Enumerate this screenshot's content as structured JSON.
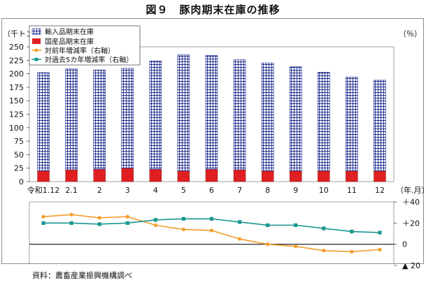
{
  "title": "図９　豚肉期末在庫の推移",
  "source": "資料：農畜産業振興機構調べ",
  "chart_data": [
    {
      "type": "bar",
      "stacked": true,
      "ylabel": "（千トン）",
      "xlabel": "（年.月）",
      "ylim": [
        0,
        250
      ],
      "yticks": [
        0,
        25,
        50,
        75,
        100,
        125,
        150,
        175,
        200,
        225,
        250
      ],
      "categories": [
        "令和1.12",
        "2.1",
        "2",
        "3",
        "4",
        "5",
        "6",
        "7",
        "8",
        "9",
        "10",
        "11",
        "12"
      ],
      "grid": true,
      "legend_position": "top-left",
      "series": [
        {
          "name": "国産品期末在庫",
          "color": "#e02020",
          "values": [
            20,
            22,
            23,
            25,
            23,
            20,
            23,
            22,
            20,
            20,
            20,
            20,
            20
          ]
        },
        {
          "name": "輸入品期末在庫",
          "color": "#1a2a8c",
          "values": [
            182,
            187,
            184,
            185,
            201,
            215,
            211,
            204,
            200,
            193,
            183,
            174,
            168
          ]
        }
      ]
    },
    {
      "type": "line",
      "ylabel": "（％）",
      "ylim": [
        -20,
        40
      ],
      "yticks": [
        {
          "value": 40,
          "label": "＋40"
        },
        {
          "value": 20,
          "label": "＋20"
        },
        {
          "value": 0,
          "label": "0"
        },
        {
          "value": -20,
          "label": "▲ 20"
        }
      ],
      "categories": [
        "令和1.12",
        "2.1",
        "2",
        "3",
        "4",
        "5",
        "6",
        "7",
        "8",
        "9",
        "10",
        "11",
        "12"
      ],
      "series": [
        {
          "name": "対前年増減率（右軸）",
          "color": "#f39c2a",
          "marker": "circle",
          "values": [
            26,
            28,
            25,
            26,
            18,
            14,
            13,
            5,
            0,
            -2,
            -6,
            -7,
            -5
          ]
        },
        {
          "name": "対過去5カ年増減率（右軸）",
          "color": "#17968f",
          "marker": "square",
          "values": [
            20,
            20,
            19,
            20,
            23,
            24,
            24,
            21,
            18,
            18,
            15,
            12,
            11
          ]
        }
      ]
    }
  ]
}
